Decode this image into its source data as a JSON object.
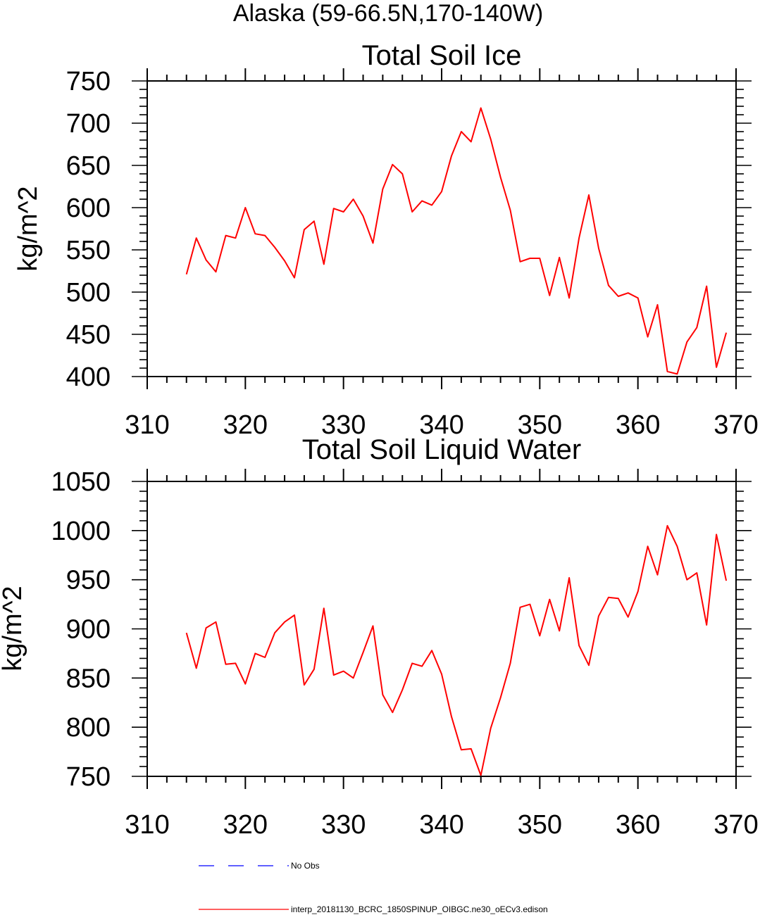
{
  "figure": {
    "suptitle": "Alaska (59-66.5N,170-140W)"
  },
  "chart_data": [
    {
      "type": "line",
      "title": "Total Soil Ice",
      "xlabel": "",
      "ylabel": "kg/m^2",
      "xlim": [
        310,
        370
      ],
      "ylim": [
        400,
        750
      ],
      "xticks": [
        310,
        320,
        330,
        340,
        350,
        360,
        370
      ],
      "yticks": [
        400,
        450,
        500,
        550,
        600,
        650,
        700,
        750
      ],
      "grid": false,
      "series": [
        {
          "name": "interp_20181130_BCRC_1850SPINUP_OIBGC.ne30_oECv3.edison",
          "color": "#ff0000",
          "x": [
            314,
            315,
            316,
            317,
            318,
            319,
            320,
            321,
            322,
            323,
            324,
            325,
            326,
            327,
            328,
            329,
            330,
            331,
            332,
            333,
            334,
            335,
            336,
            337,
            338,
            339,
            340,
            341,
            342,
            343,
            344,
            345,
            346,
            347,
            348,
            349,
            350,
            351,
            352,
            353,
            354,
            355,
            356,
            357,
            358,
            359,
            360,
            361,
            362,
            363,
            364,
            365,
            366,
            367,
            368,
            369
          ],
          "y": [
            521,
            564,
            538,
            524,
            567,
            564,
            600,
            569,
            567,
            553,
            537,
            517,
            574,
            584,
            533,
            599,
            595,
            610,
            590,
            558,
            622,
            651,
            640,
            595,
            608,
            603,
            619,
            661,
            690,
            678,
            718,
            681,
            636,
            597,
            536,
            540,
            540,
            496,
            541,
            493,
            564,
            615,
            552,
            508,
            495,
            499,
            493,
            447,
            485,
            406,
            403,
            441,
            458,
            507,
            411,
            452
          ]
        }
      ]
    },
    {
      "type": "line",
      "title": "Total Soil Liquid Water",
      "xlabel": "",
      "ylabel": "kg/m^2",
      "xlim": [
        310,
        370
      ],
      "ylim": [
        750,
        1050
      ],
      "xticks": [
        310,
        320,
        330,
        340,
        350,
        360,
        370
      ],
      "yticks": [
        750,
        800,
        850,
        900,
        950,
        1000,
        1050
      ],
      "grid": false,
      "series": [
        {
          "name": "interp_20181130_BCRC_1850SPINUP_OIBGC.ne30_oECv3.edison",
          "color": "#ff0000",
          "x": [
            314,
            315,
            316,
            317,
            318,
            319,
            320,
            321,
            322,
            323,
            324,
            325,
            326,
            327,
            328,
            329,
            330,
            331,
            332,
            333,
            334,
            335,
            336,
            337,
            338,
            339,
            340,
            341,
            342,
            343,
            344,
            345,
            346,
            347,
            348,
            349,
            350,
            351,
            352,
            353,
            354,
            355,
            356,
            357,
            358,
            359,
            360,
            361,
            362,
            363,
            364,
            365,
            366,
            367,
            368,
            369
          ],
          "y": [
            896,
            860,
            901,
            907,
            864,
            865,
            844,
            875,
            871,
            896,
            907,
            914,
            843,
            859,
            921,
            853,
            857,
            850,
            876,
            903,
            833,
            815,
            838,
            865,
            862,
            878,
            854,
            811,
            777,
            778,
            751,
            799,
            830,
            865,
            922,
            925,
            893,
            930,
            898,
            952,
            883,
            863,
            913,
            932,
            931,
            912,
            938,
            984,
            955,
            1005,
            984,
            950,
            957,
            904,
            996,
            949
          ]
        }
      ]
    }
  ],
  "legend": {
    "placement": "bottom",
    "entries": [
      {
        "label": "No Obs",
        "color": "#0000ff",
        "style": "dashed"
      },
      {
        "label": "interp_20181130_BCRC_1850SPINUP_OIBGC.ne30_oECv3.edison",
        "color": "#ff0000",
        "style": "solid"
      }
    ]
  }
}
